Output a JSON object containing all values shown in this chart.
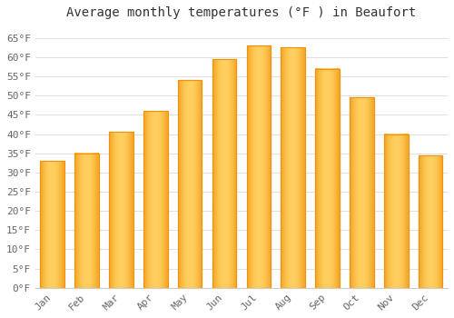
{
  "title": "Average monthly temperatures (°F ) in Beaufort",
  "months": [
    "Jan",
    "Feb",
    "Mar",
    "Apr",
    "May",
    "Jun",
    "Jul",
    "Aug",
    "Sep",
    "Oct",
    "Nov",
    "Dec"
  ],
  "values": [
    33,
    35,
    40.5,
    46,
    54,
    59.5,
    63,
    62.5,
    57,
    49.5,
    40,
    34.5
  ],
  "bar_color_center": "#FFD060",
  "bar_color_edge": "#F0920A",
  "ylim": [
    0,
    68
  ],
  "yticks": [
    0,
    5,
    10,
    15,
    20,
    25,
    30,
    35,
    40,
    45,
    50,
    55,
    60,
    65
  ],
  "ytick_labels": [
    "0°F",
    "5°F",
    "10°F",
    "15°F",
    "20°F",
    "25°F",
    "30°F",
    "35°F",
    "40°F",
    "45°F",
    "50°F",
    "55°F",
    "60°F",
    "65°F"
  ],
  "background_color": "#ffffff",
  "plot_bg_color": "#ffffff",
  "grid_color": "#e0e0e0",
  "title_fontsize": 10,
  "tick_fontsize": 8,
  "font_family": "monospace",
  "tick_color": "#666666",
  "bar_width": 0.7
}
